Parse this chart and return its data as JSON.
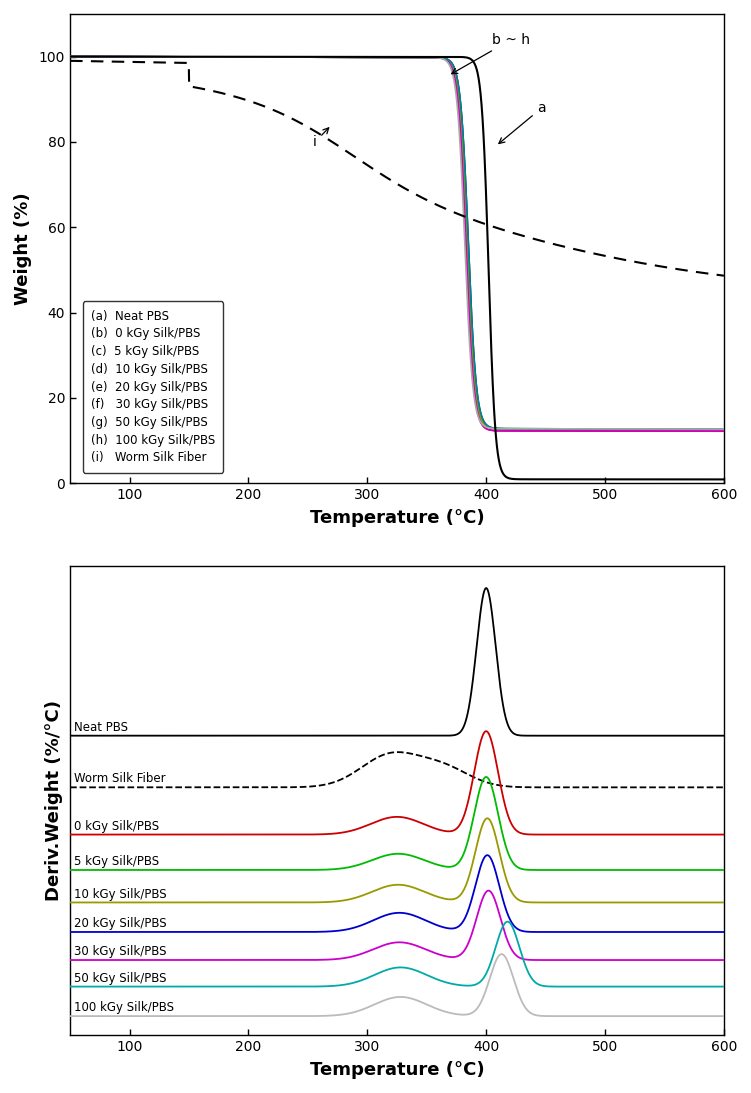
{
  "top_xlabel": "Temperature (°C)",
  "top_ylabel": "Weight (%)",
  "bottom_xlabel": "Temperature (°C)",
  "bottom_ylabel": "Deriv.Weight (%/°C)",
  "legend_labels": [
    "(a)  Neat PBS",
    "(b)  0 kGy Silk/PBS",
    "(c)  5 kGy Silk/PBS",
    "(d)  10 kGy Silk/PBS",
    "(e)  20 kGy Silk/PBS",
    "(f)   30 kGy Silk/PBS",
    "(g)  50 kGy Silk/PBS",
    "(h)  100 kGy Silk/PBS",
    "(i)   Worm Silk Fiber"
  ],
  "bottom_labels": [
    "Neat PBS",
    "Worm Silk Fiber",
    "0 kGy Silk/PBS",
    "5 kGy Silk/PBS",
    "10 kGy Silk/PBS",
    "20 kGy Silk/PBS",
    "30 kGy Silk/PBS",
    "50 kGy Silk/PBS",
    "100 kGy Silk/PBS"
  ],
  "comp_colors": [
    "#cc0000",
    "#00bb00",
    "#0000cc",
    "#999900",
    "#cc00cc",
    "#008888",
    "#aaaaaa"
  ],
  "bottom_colors": [
    "#000000",
    "#000000",
    "#cc0000",
    "#00bb00",
    "#999900",
    "#0000cc",
    "#cc00cc",
    "#00aaaa",
    "#bbbbbb"
  ]
}
